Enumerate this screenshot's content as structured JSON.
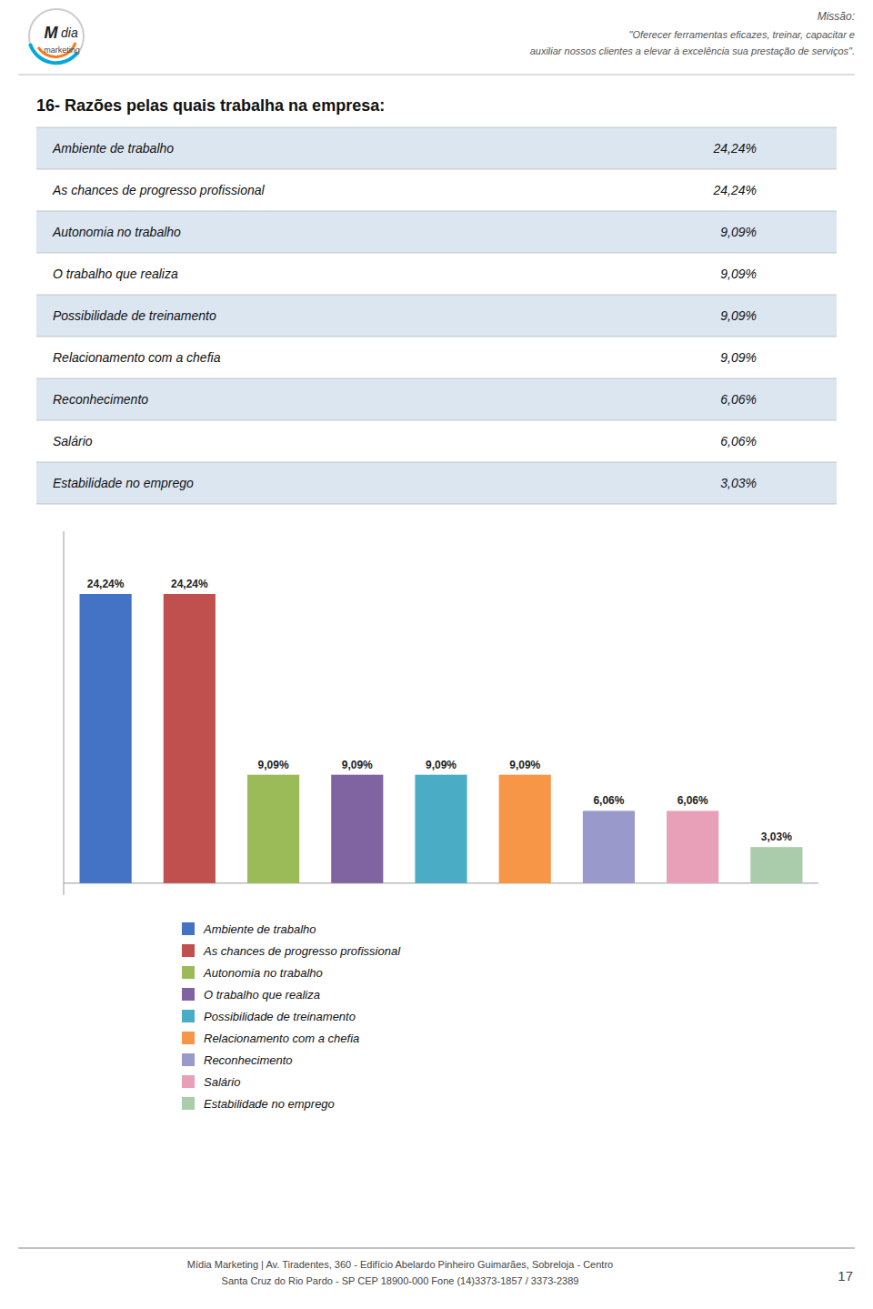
{
  "header": {
    "logo_texts": [
      "M",
      "dia",
      "marketing"
    ],
    "mission_title": "Missão:",
    "mission_lines": [
      "\"Oferecer ferramentas eficazes, treinar, capacitar e",
      "auxiliar nossos clientes a elevar à excelência sua prestação de serviços\"."
    ]
  },
  "chart_data": {
    "type": "bar",
    "title": "16- Razões pelas quais trabalha na empresa:",
    "categories": [
      "Ambiente de trabalho",
      "As chances de progresso profissional",
      "Autonomia no trabalho",
      "O trabalho que realiza",
      "Possibilidade de treinamento",
      "Relacionamento com a chefia",
      "Reconhecimento",
      "Salário",
      "Estabilidade no emprego"
    ],
    "values": [
      24.24,
      24.24,
      9.09,
      9.09,
      9.09,
      9.09,
      6.06,
      6.06,
      3.03
    ],
    "value_labels": [
      "24,24%",
      "24,24%",
      "9,09%",
      "9,09%",
      "9,09%",
      "9,09%",
      "6,06%",
      "6,06%",
      "3,03%"
    ],
    "colors": [
      "#4472C4",
      "#C0504D",
      "#9BBB59",
      "#8064A2",
      "#4BACC6",
      "#F79646",
      "#9999CC",
      "#E8A0B8",
      "#AACCAA"
    ],
    "ylim": [
      -1.0,
      29.5
    ],
    "data_labels": true,
    "tick_labels": false,
    "grid": false,
    "legend": "bottom"
  },
  "table": {
    "rows": [
      {
        "label": "Ambiente de trabalho",
        "value": "24,24%"
      },
      {
        "label": "As chances de progresso profissional",
        "value": "24,24%"
      },
      {
        "label": "Autonomia no trabalho",
        "value": "9,09%"
      },
      {
        "label": "O trabalho que realiza",
        "value": "9,09%"
      },
      {
        "label": "Possibilidade de treinamento",
        "value": "9,09%"
      },
      {
        "label": "Relacionamento com a chefia",
        "value": "9,09%"
      },
      {
        "label": "Reconhecimento",
        "value": "6,06%"
      },
      {
        "label": "Salário",
        "value": "6,06%"
      },
      {
        "label": "Estabilidade no emprego",
        "value": "3,03%"
      }
    ]
  },
  "footer": {
    "lines": [
      "Mídia Marketing | Av. Tiradentes, 360 - Edifício Abelardo Pinheiro Guimarães, Sobreloja - Centro",
      "Santa Cruz do Rio Pardo - SP     CEP 18900-000     Fone (14)3373-1857 / 3373-2389"
    ],
    "page_number": "17"
  }
}
